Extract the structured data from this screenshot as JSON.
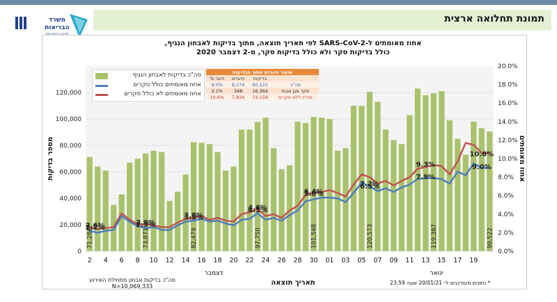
{
  "header": {
    "title": "תמונת תחלואה ארצית"
  },
  "logo": {
    "line1": "משרד",
    "line2": "הבריאות",
    "line3": "לחיים בריאים יותר"
  },
  "summary": {
    "title": "שיעור חיוביים מתוך הבדיקות",
    "headers": [
      "% חיובי",
      "חיוביים",
      "בדיקות",
      ""
    ],
    "rows": [
      [
        "9.0%",
        "8,174",
        "90,522",
        "סה\"כ"
      ],
      [
        "2.1%",
        "348",
        "16,364",
        "סקר  מגן אבות"
      ],
      [
        "10.6%",
        "7,826",
        "74,158",
        "סה\"כ ללא סקרים"
      ]
    ]
  },
  "footer": {
    "left_line1": "סה\"כ בדיקות אבחון מתחילת האירוע",
    "left_line2": "N=10,069,333",
    "right": "* נתונים מעודכנים ל- 20/01/21 שעה 23:59"
  },
  "chart_data": {
    "type": "bar",
    "title_line1": "אחוז מאומתים ל-SARS-CoV-2 לפי תאריך תוצאה, מתוך בדיקות לאבחון הנגיף,",
    "title_line2": "כולל בדיקות סקר ולא כולל בדיקות סקר, מ-2 דצמבר 2020",
    "xlabel": "תאריך תוצאה",
    "ylabel_left": "מספר בדיקות",
    "ylabel_right": "אחוז מאומתים",
    "month_labels": [
      "דצמבר",
      "ינואר"
    ],
    "ylim_left": [
      0,
      140000
    ],
    "yticks_left": [
      "0",
      "20,000",
      "40,000",
      "60,000",
      "80,000",
      "100,000",
      "120,000"
    ],
    "ylim_right": [
      0,
      20
    ],
    "yticks_right": [
      "0.0%",
      "2.0%",
      "4.0%",
      "6.0%",
      "8.0%",
      "10.0%",
      "12.0%",
      "14.0%",
      "16.0%",
      "18.0%",
      "20.0%"
    ],
    "xtick_labels": [
      "2",
      "4",
      "6",
      "8",
      "10",
      "12",
      "14",
      "16",
      "18",
      "20",
      "22",
      "24",
      "26",
      "28",
      "30",
      "01",
      "03",
      "05",
      "07",
      "09",
      "11",
      "13",
      "15",
      "17",
      "19"
    ],
    "legend": [
      "סה\"כ בדיקות לאבחון הנגיף",
      "אחוז מאומתים כולל סקרים",
      "אחוז מאומתים לא כולל סקרים"
    ],
    "tests": [
      71286,
      64000,
      61000,
      35000,
      43000,
      67000,
      70000,
      73871,
      76000,
      75000,
      38000,
      45000,
      58000,
      82479,
      82000,
      81000,
      75000,
      61000,
      64000,
      92000,
      92000,
      97750,
      101000,
      78000,
      62000,
      65000,
      98000,
      97000,
      101548,
      101000,
      100000,
      76000,
      78000,
      110000,
      110000,
      120573,
      113000,
      92000,
      84000,
      81000,
      103000,
      123000,
      118000,
      119387,
      121000,
      99000,
      85000,
      73000,
      98000,
      93000,
      90522
    ],
    "pos_incl": [
      2.2,
      2.0,
      2.2,
      2.3,
      3.8,
      3.2,
      2.7,
      2.5,
      2.6,
      2.3,
      2.3,
      2.8,
      3.2,
      3.3,
      3.5,
      3.2,
      3.3,
      3.0,
      2.8,
      3.4,
      3.5,
      4.1,
      3.4,
      3.6,
      3.3,
      3.9,
      4.4,
      5.4,
      5.6,
      5.8,
      5.8,
      5.7,
      5.3,
      6.3,
      7.4,
      7.0,
      6.5,
      6.8,
      6.4,
      6.9,
      7.2,
      7.8,
      7.9,
      7.9,
      7.8,
      7.3,
      8.6,
      8.2,
      9.5,
      9.0,
      9.0
    ],
    "pos_excl": [
      2.6,
      2.4,
      2.5,
      2.6,
      4.1,
      3.4,
      2.9,
      2.9,
      2.8,
      2.6,
      2.6,
      3.1,
      3.5,
      3.6,
      3.8,
      3.4,
      3.6,
      3.3,
      3.2,
      4.0,
      4.2,
      4.6,
      3.8,
      4.0,
      3.6,
      4.4,
      4.9,
      6.1,
      6.3,
      6.4,
      6.6,
      6.3,
      5.9,
      7.2,
      8.3,
      8.0,
      7.3,
      7.6,
      7.1,
      7.6,
      8.0,
      8.9,
      9.1,
      9.3,
      9.2,
      8.3,
      9.7,
      11.7,
      11.5,
      10.6,
      10.6
    ],
    "bar_labels": [
      "71,286",
      "73,871",
      "82,479",
      "97,750",
      "101,548",
      "120,573",
      "119,387",
      "90,522"
    ],
    "annotations": [
      "2.6%",
      "2.2%",
      "2.9%",
      "2.5%",
      "3.8%",
      "3.5%",
      "4.6%",
      "4.1%",
      "6.4%",
      "5.8%",
      "7.2%",
      "6.5%",
      "9.3%",
      "7.9%",
      "10.6%",
      "9.0%"
    ],
    "colors": {
      "bars": "#a9c26c",
      "incl": "#4a7ebb",
      "excl": "#c0504d",
      "plot_bg": "#f4f4f4",
      "summary_header": "#e98a3a"
    }
  }
}
